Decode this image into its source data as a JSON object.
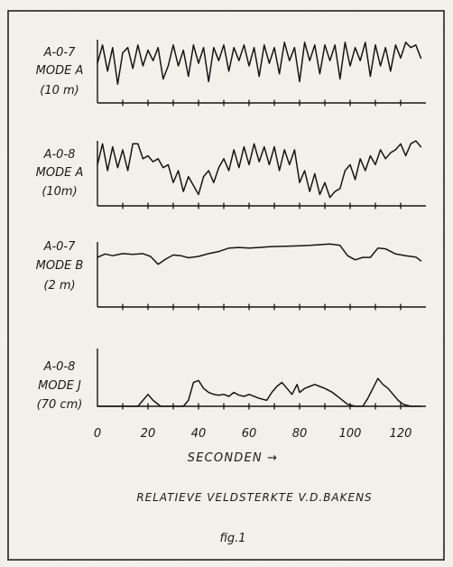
{
  "chart_data": {
    "type": "line",
    "title": "RELATIEVE VELDSTERKTE V.D.BAKENS",
    "caption": "fig.1",
    "xlabel": "SECONDEN →",
    "x_ticks": [
      "0",
      "20",
      "40",
      "60",
      "80",
      "100",
      "120"
    ],
    "xlim": [
      0,
      130
    ],
    "panels": [
      {
        "label_lines": [
          "A-0-7",
          "MODE A",
          "(10 m)"
        ],
        "x": [
          0,
          2,
          4,
          6,
          8,
          10,
          12,
          14,
          16,
          18,
          20,
          22,
          24,
          26,
          28,
          30,
          32,
          34,
          36,
          38,
          40,
          42,
          44,
          46,
          48,
          50,
          52,
          54,
          56,
          58,
          60,
          62,
          64,
          66,
          68,
          70,
          72,
          74,
          76,
          78,
          80,
          82,
          84,
          86,
          88,
          90,
          92,
          94,
          96,
          98,
          100,
          102,
          104,
          106,
          108,
          110,
          112,
          114,
          116,
          118,
          120,
          122,
          124,
          126,
          128
        ],
        "y": [
          0.55,
          0.9,
          0.4,
          0.85,
          0.15,
          0.75,
          0.85,
          0.45,
          0.9,
          0.5,
          0.8,
          0.6,
          0.85,
          0.25,
          0.5,
          0.9,
          0.5,
          0.8,
          0.3,
          0.9,
          0.55,
          0.85,
          0.2,
          0.85,
          0.6,
          0.9,
          0.4,
          0.85,
          0.6,
          0.9,
          0.5,
          0.85,
          0.3,
          0.9,
          0.55,
          0.85,
          0.35,
          0.95,
          0.6,
          0.85,
          0.2,
          0.95,
          0.6,
          0.9,
          0.35,
          0.9,
          0.6,
          0.9,
          0.25,
          0.95,
          0.5,
          0.85,
          0.6,
          0.95,
          0.3,
          0.9,
          0.5,
          0.85,
          0.4,
          0.9,
          0.65,
          0.95,
          0.85,
          0.9,
          0.65
        ]
      },
      {
        "label_lines": [
          "A-0-8",
          "MODE A",
          "(10m)"
        ],
        "x": [
          0,
          2,
          4,
          6,
          8,
          10,
          12,
          14,
          16,
          18,
          20,
          22,
          24,
          26,
          28,
          30,
          32,
          34,
          36,
          38,
          40,
          42,
          44,
          46,
          48,
          50,
          52,
          54,
          56,
          58,
          60,
          62,
          64,
          66,
          68,
          70,
          72,
          74,
          76,
          78,
          80,
          82,
          84,
          86,
          88,
          90,
          92,
          94,
          96,
          98,
          100,
          102,
          104,
          106,
          108,
          110,
          112,
          114,
          116,
          118,
          120,
          122,
          124,
          126,
          128
        ],
        "y": [
          0.6,
          0.95,
          0.5,
          0.9,
          0.55,
          0.85,
          0.5,
          0.95,
          0.95,
          0.7,
          0.75,
          0.65,
          0.7,
          0.55,
          0.6,
          0.3,
          0.5,
          0.15,
          0.4,
          0.25,
          0.1,
          0.4,
          0.5,
          0.3,
          0.55,
          0.7,
          0.5,
          0.85,
          0.55,
          0.9,
          0.6,
          0.95,
          0.65,
          0.9,
          0.6,
          0.9,
          0.5,
          0.85,
          0.6,
          0.85,
          0.3,
          0.5,
          0.15,
          0.45,
          0.1,
          0.3,
          0.05,
          0.15,
          0.2,
          0.5,
          0.6,
          0.35,
          0.7,
          0.5,
          0.75,
          0.6,
          0.85,
          0.7,
          0.8,
          0.85,
          0.95,
          0.75,
          0.95,
          1.0,
          0.9
        ]
      },
      {
        "label_lines": [
          "A-0-7",
          "MODE B",
          "(2 m)"
        ],
        "x": [
          0,
          3,
          6,
          10,
          14,
          18,
          21,
          24,
          27,
          30,
          33,
          36,
          40,
          44,
          48,
          52,
          56,
          60,
          64,
          68,
          72,
          76,
          80,
          84,
          88,
          92,
          96,
          99,
          102,
          105,
          108,
          111,
          114,
          118,
          122,
          126,
          128
        ],
        "y": [
          0.55,
          0.65,
          0.6,
          0.66,
          0.64,
          0.66,
          0.58,
          0.35,
          0.5,
          0.62,
          0.6,
          0.54,
          0.58,
          0.66,
          0.72,
          0.82,
          0.84,
          0.82,
          0.84,
          0.86,
          0.87,
          0.88,
          0.89,
          0.9,
          0.92,
          0.94,
          0.9,
          0.6,
          0.48,
          0.55,
          0.55,
          0.82,
          0.8,
          0.65,
          0.6,
          0.56,
          0.45
        ]
      },
      {
        "label_lines": [
          "A-0-8",
          "MODE J",
          "(70 cm)"
        ],
        "x": [
          0,
          6,
          12,
          16,
          18,
          20,
          22,
          25,
          30,
          34,
          36,
          38,
          40,
          42,
          44,
          46,
          48,
          50,
          52,
          54,
          56,
          58,
          60,
          64,
          67,
          69,
          71,
          73,
          75,
          77,
          79,
          80,
          82,
          84,
          86,
          88,
          90,
          93,
          96,
          99,
          102,
          105,
          107,
          109,
          111,
          113,
          115,
          117,
          119,
          121,
          124,
          126,
          128
        ],
        "y": [
          0,
          0,
          0,
          0,
          0.15,
          0.3,
          0.15,
          0,
          0,
          0,
          0.15,
          0.6,
          0.65,
          0.45,
          0.35,
          0.3,
          0.28,
          0.3,
          0.25,
          0.35,
          0.28,
          0.25,
          0.3,
          0.2,
          0.15,
          0.35,
          0.5,
          0.6,
          0.45,
          0.3,
          0.55,
          0.35,
          0.45,
          0.5,
          0.55,
          0.5,
          0.45,
          0.35,
          0.2,
          0.05,
          0,
          0,
          0.2,
          0.45,
          0.7,
          0.55,
          0.45,
          0.3,
          0.15,
          0.05,
          0,
          0,
          0
        ]
      }
    ]
  }
}
